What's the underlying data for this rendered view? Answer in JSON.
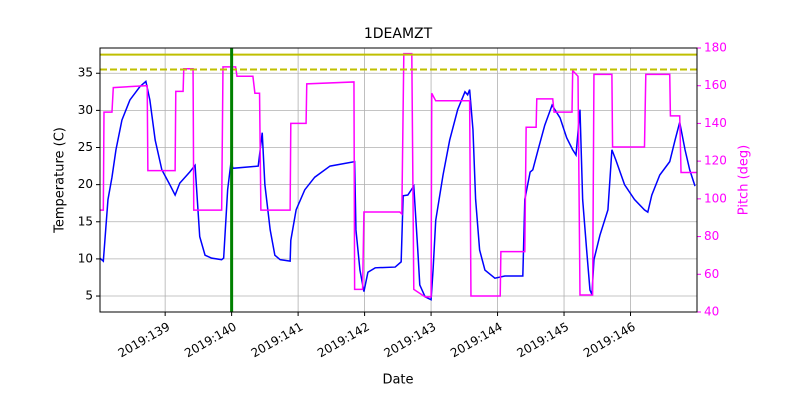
{
  "chart_data": {
    "type": "line",
    "title": "1DEAMZT",
    "xlabel": "Date",
    "ylabel": "Temperature (C)",
    "y2label": "Pitch (deg)",
    "xlim": [
      138.02,
      147.0
    ],
    "xticks": [
      {
        "value": 139,
        "label": "2019:139"
      },
      {
        "value": 140,
        "label": "2019:140"
      },
      {
        "value": 141,
        "label": "2019:141"
      },
      {
        "value": 142,
        "label": "2019:142"
      },
      {
        "value": 143,
        "label": "2019:143"
      },
      {
        "value": 144,
        "label": "2019:144"
      },
      {
        "value": 145,
        "label": "2019:145"
      },
      {
        "value": 146,
        "label": "2019:146"
      }
    ],
    "ylim": [
      2.85,
      38.4
    ],
    "yticks": [
      5,
      10,
      15,
      20,
      25,
      30,
      35
    ],
    "y2lim": [
      40,
      180
    ],
    "y2ticks": [
      40,
      60,
      80,
      100,
      120,
      140,
      160,
      180
    ],
    "y2color": "#ff00ff",
    "grid": true,
    "hlines": [
      {
        "value": 37.5,
        "color": "#bfbf00",
        "style": "solid"
      },
      {
        "value": 35.5,
        "color": "#bfbf00",
        "style": "dashed"
      }
    ],
    "vlines": [
      {
        "value": 140.0,
        "color": "#008000"
      }
    ],
    "series": [
      {
        "color": "#0000ff",
        "axis": "y",
        "x": [
          138.02,
          138.07,
          138.14,
          138.2,
          138.26,
          138.35,
          138.47,
          138.62,
          138.71,
          138.77,
          138.85,
          138.95,
          139.07,
          139.15,
          139.22,
          139.37,
          139.45,
          139.52,
          139.6,
          139.7,
          139.85,
          139.88,
          139.94,
          139.99,
          140.02,
          140.4,
          140.46,
          140.5,
          140.58,
          140.65,
          140.73,
          140.88,
          140.89,
          140.97,
          141.1,
          141.25,
          141.48,
          141.85,
          141.87,
          141.93,
          141.99,
          142.05,
          142.16,
          142.46,
          142.55,
          142.58,
          142.65,
          142.74,
          142.8,
          142.83,
          142.91,
          143.0,
          143.03,
          143.07,
          143.18,
          143.28,
          143.4,
          143.51,
          143.55,
          143.58,
          143.63,
          143.67,
          143.73,
          143.81,
          143.96,
          144.11,
          144.38,
          144.41,
          144.49,
          144.53,
          144.61,
          144.71,
          144.82,
          144.94,
          145.04,
          145.13,
          145.18,
          145.24,
          145.28,
          145.34,
          145.39,
          145.42,
          145.45,
          145.54,
          145.66,
          145.72,
          145.78,
          145.91,
          146.06,
          146.21,
          146.26,
          146.32,
          146.44,
          146.59,
          146.67,
          146.74,
          146.82,
          146.89,
          146.97
        ],
        "values": [
          10.1,
          9.7,
          18,
          21,
          24.7,
          28.7,
          31.4,
          33.2,
          33.9,
          31.4,
          26,
          22,
          20,
          18.6,
          20.2,
          21.7,
          22.6,
          13,
          10.5,
          10.1,
          9.9,
          10.1,
          19.3,
          23,
          22.2,
          22.5,
          27,
          20,
          13.9,
          10.5,
          9.9,
          9.7,
          12.5,
          16.6,
          19.3,
          21,
          22.5,
          23.1,
          13.9,
          8.5,
          5.6,
          8.2,
          8.8,
          8.9,
          9.6,
          18.5,
          18.6,
          19.8,
          11.2,
          6.5,
          4.9,
          4.5,
          8.5,
          15.2,
          21.3,
          26,
          30.1,
          32.5,
          32.1,
          32.8,
          27.4,
          18,
          11.2,
          8.5,
          7.4,
          7.7,
          7.7,
          18,
          21.7,
          22,
          24.7,
          28,
          30.7,
          29,
          26.3,
          24.7,
          24,
          30.1,
          18,
          11.2,
          5.8,
          5.2,
          9.9,
          13.2,
          16.6,
          24.7,
          23.3,
          20,
          18,
          16.6,
          16.3,
          18.6,
          21.3,
          23.1,
          26,
          28.4,
          24.7,
          22,
          19.8
        ]
      },
      {
        "color": "#ff00ff",
        "axis": "y2",
        "x": [
          138.02,
          138.07,
          138.08,
          138.2,
          138.22,
          138.7,
          138.73,
          138.74,
          139.15,
          139.16,
          139.27,
          139.28,
          139.42,
          139.43,
          139.85,
          139.87,
          140.06,
          140.08,
          140.32,
          140.35,
          140.42,
          140.44,
          140.88,
          140.89,
          141.12,
          141.13,
          141.84,
          141.85,
          141.97,
          141.99,
          142.53,
          142.56,
          142.59,
          142.71,
          142.74,
          142.91,
          143.0,
          143.01,
          143.07,
          143.58,
          143.6,
          144.04,
          144.05,
          144.41,
          144.43,
          144.58,
          144.59,
          144.83,
          144.85,
          145.12,
          145.13,
          145.21,
          145.24,
          145.43,
          145.45,
          145.72,
          145.73,
          146.21,
          146.23,
          146.59,
          146.6,
          146.74,
          146.76,
          146.99
        ],
        "values": [
          94,
          94,
          146,
          146,
          159,
          160,
          160,
          115,
          115,
          157,
          157,
          169,
          169,
          94,
          94,
          170,
          170,
          165,
          165,
          156,
          156,
          94,
          94,
          140,
          140,
          161,
          162,
          52,
          52,
          93,
          93,
          92,
          177,
          177,
          52,
          48,
          48,
          156,
          152,
          152,
          48.5,
          48.5,
          72,
          72,
          138,
          138,
          153,
          153,
          146,
          146,
          168,
          165,
          49,
          49,
          166,
          166,
          127.5,
          127.5,
          166,
          166,
          144,
          144,
          114,
          114
        ]
      }
    ]
  }
}
